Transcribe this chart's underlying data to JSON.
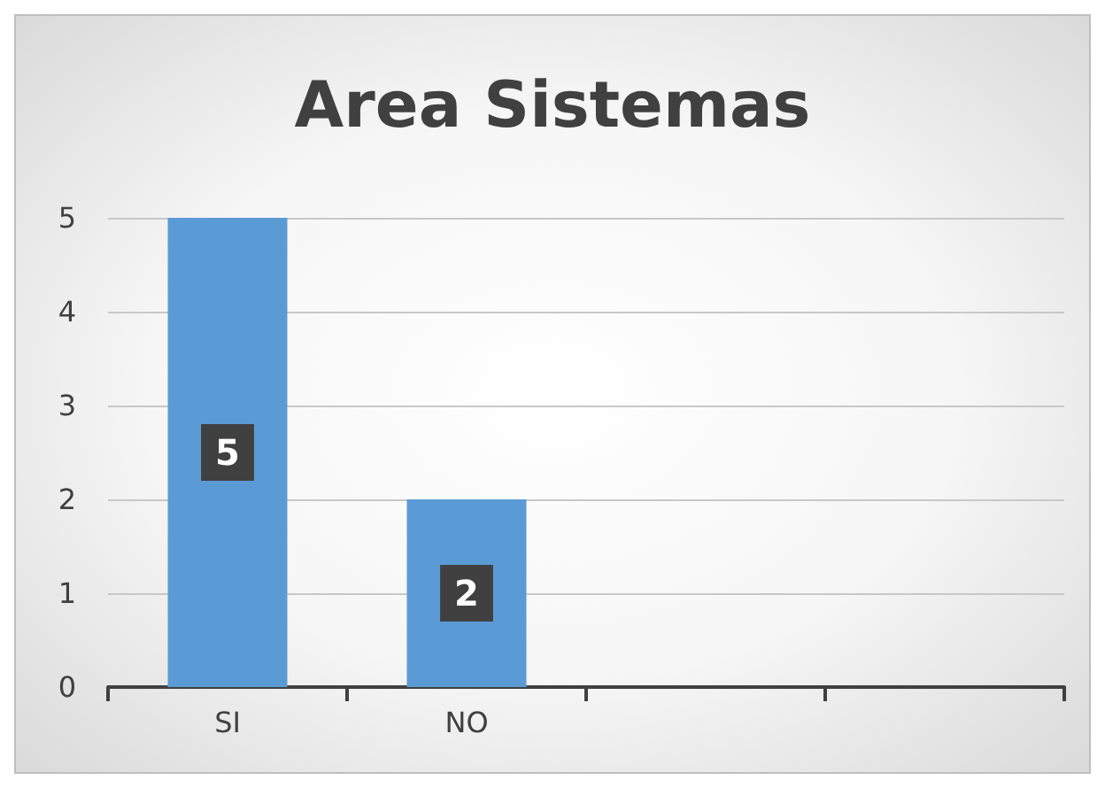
{
  "chart_data": {
    "type": "bar",
    "title": "Area Sistemas",
    "categories": [
      "SI",
      "NO",
      null,
      null
    ],
    "values": [
      5,
      2,
      null,
      null
    ],
    "color": "#5b9bd5",
    "ylim": [
      0,
      5
    ],
    "yticks": [
      0,
      1,
      2,
      3,
      4,
      5
    ],
    "grid": "y",
    "data_labels": true
  }
}
